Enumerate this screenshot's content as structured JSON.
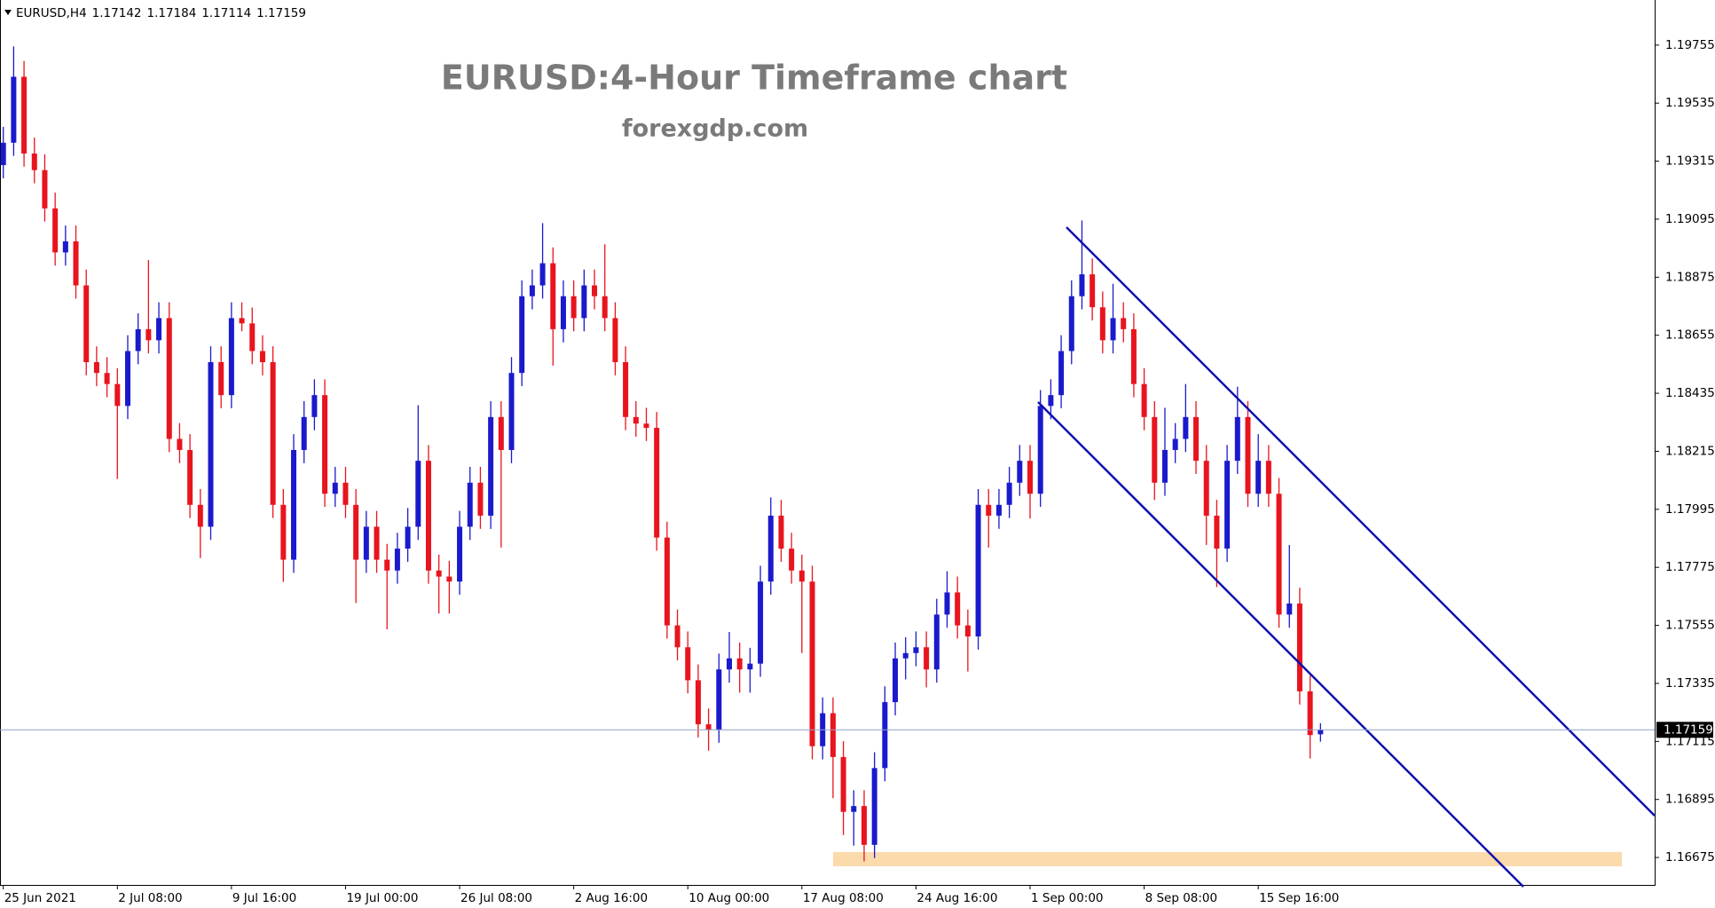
{
  "chart_data": {
    "type": "candlestick",
    "symbol": "EURUSD,H4",
    "quote": {
      "open": 1.17142,
      "high": 1.17184,
      "low": 1.17114,
      "close": 1.17159
    },
    "title": "EURUSD:4-Hour Timeframe chart",
    "subtitle": "forexgdp.com",
    "up_color": "#1a1acc",
    "down_color": "#e8141e",
    "ylim": [
      1.16571,
      1.19926
    ],
    "yticks": [
      1.16675,
      1.16895,
      1.17115,
      1.17335,
      1.17555,
      1.17775,
      1.17995,
      1.18215,
      1.18435,
      1.18655,
      1.18875,
      1.19095,
      1.19315,
      1.19535,
      1.19755
    ],
    "last_price": 1.17159,
    "categories": [
      "25 Jun 2021",
      null,
      null,
      null,
      null,
      null,
      null,
      null,
      null,
      null,
      null,
      "2 Jul 08:00",
      null,
      null,
      null,
      null,
      null,
      null,
      null,
      null,
      null,
      null,
      "9 Jul 16:00",
      null,
      null,
      null,
      null,
      null,
      null,
      null,
      null,
      null,
      null,
      "19 Jul 00:00",
      null,
      null,
      null,
      null,
      null,
      null,
      null,
      null,
      null,
      null,
      "26 Jul 08:00",
      null,
      null,
      null,
      null,
      null,
      null,
      null,
      null,
      null,
      null,
      "2 Aug 16:00",
      null,
      null,
      null,
      null,
      null,
      null,
      null,
      null,
      null,
      null,
      "10 Aug 00:00",
      null,
      null,
      null,
      null,
      null,
      null,
      null,
      null,
      null,
      null,
      "17 Aug 08:00",
      null,
      null,
      null,
      null,
      null,
      null,
      null,
      null,
      null,
      null,
      "24 Aug 16:00",
      null,
      null,
      null,
      null,
      null,
      null,
      null,
      null,
      null,
      null,
      "1 Sep 00:00",
      null,
      null,
      null,
      null,
      null,
      null,
      null,
      null,
      null,
      null,
      "8 Sep 08:00",
      null,
      null,
      null,
      null,
      null,
      null,
      null,
      null,
      null,
      null,
      "15 Sep 16:00",
      null,
      null,
      null,
      null,
      null,
      null
    ],
    "open": [
      1.193,
      1.19385,
      1.19635,
      1.19344,
      1.19281,
      1.19136,
      1.18969,
      1.19011,
      1.18844,
      1.18553,
      1.18512,
      1.1847,
      1.18387,
      1.18595,
      1.18678,
      1.18636,
      1.1872,
      1.18262,
      1.1822,
      1.18012,
      1.17929,
      1.18553,
      1.18428,
      1.1872,
      1.187,
      1.18595,
      1.18553,
      1.18012,
      1.17804,
      1.1822,
      1.18345,
      1.18428,
      1.18054,
      1.18096,
      1.18012,
      1.17804,
      1.17929,
      1.17804,
      1.17763,
      1.17846,
      1.17929,
      1.18179,
      1.17763,
      1.1774,
      1.17721,
      1.17929,
      1.18096,
      1.17971,
      1.18345,
      1.1822,
      1.18512,
      1.18803,
      1.18844,
      1.18928,
      1.18678,
      1.18803,
      1.1872,
      1.18844,
      1.18803,
      1.1872,
      1.18553,
      1.18345,
      1.1832,
      1.18304,
      1.17888,
      1.17555,
      1.17472,
      1.17347,
      1.1718,
      1.1716,
      1.17388,
      1.1743,
      1.17388,
      1.1741,
      1.17721,
      1.17971,
      1.17846,
      1.17763,
      1.17721,
      1.17097,
      1.17222,
      1.17056,
      1.16848,
      1.1687,
      1.16723,
      1.17014,
      1.17264,
      1.1743,
      1.1745,
      1.17472,
      1.17388,
      1.17596,
      1.1768,
      1.17555,
      1.17513,
      1.18012,
      1.17971,
      1.18012,
      1.18096,
      1.18179,
      1.18054,
      1.18387,
      1.18428,
      1.18595,
      1.18803,
      1.18886,
      1.18761,
      1.18636,
      1.1872,
      1.18678,
      1.1847,
      1.18345,
      1.18096,
      1.1822,
      1.18262,
      1.18345,
      1.18179,
      1.17971,
      1.17846,
      1.18179,
      1.18345,
      1.18054,
      1.18179,
      1.18054,
      1.17596,
      1.17638,
      1.17305,
      1.17142
    ],
    "high": [
      1.19445,
      1.1975,
      1.19695,
      1.19404,
      1.19341,
      1.19196,
      1.19071,
      1.19071,
      1.18904,
      1.18613,
      1.18572,
      1.1853,
      1.18655,
      1.18738,
      1.1894,
      1.1878,
      1.1878,
      1.18322,
      1.1828,
      1.18072,
      1.18613,
      1.18613,
      1.1878,
      1.1878,
      1.1876,
      1.18655,
      1.18613,
      1.18072,
      1.1828,
      1.18405,
      1.18488,
      1.18488,
      1.18156,
      1.18156,
      1.18072,
      1.17989,
      1.17989,
      1.17864,
      1.17906,
      1.18,
      1.1839,
      1.18239,
      1.17823,
      1.178,
      1.17989,
      1.18156,
      1.18156,
      1.18405,
      1.18405,
      1.18572,
      1.18863,
      1.18904,
      1.1908,
      1.18988,
      1.18863,
      1.18863,
      1.18904,
      1.18904,
      1.19,
      1.1878,
      1.18613,
      1.18405,
      1.1838,
      1.18364,
      1.17948,
      1.17615,
      1.17532,
      1.17407,
      1.1724,
      1.17448,
      1.1753,
      1.1749,
      1.1747,
      1.17781,
      1.1804,
      1.18031,
      1.17906,
      1.17823,
      1.17781,
      1.17282,
      1.17282,
      1.17116,
      1.1693,
      1.1693,
      1.17074,
      1.17324,
      1.1749,
      1.1751,
      1.17532,
      1.17532,
      1.17656,
      1.1776,
      1.1774,
      1.17615,
      1.18072,
      1.18072,
      1.18072,
      1.18156,
      1.18239,
      1.18239,
      1.18447,
      1.18488,
      1.18655,
      1.18863,
      1.1909,
      1.18946,
      1.18821,
      1.1885,
      1.1878,
      1.18738,
      1.1853,
      1.18405,
      1.1838,
      1.18322,
      1.1847,
      1.18405,
      1.18239,
      1.18031,
      1.18239,
      1.1846,
      1.18405,
      1.1828,
      1.18239,
      1.18114,
      1.1786,
      1.17698,
      1.17365,
      1.17184
    ],
    "low": [
      1.1925,
      1.19335,
      1.19294,
      1.19231,
      1.19086,
      1.18919,
      1.18919,
      1.18794,
      1.18503,
      1.18462,
      1.1842,
      1.1811,
      1.18337,
      1.18545,
      1.18586,
      1.18586,
      1.18212,
      1.1817,
      1.17962,
      1.1781,
      1.17879,
      1.18378,
      1.18378,
      1.1867,
      1.18545,
      1.18503,
      1.17962,
      1.1772,
      1.17754,
      1.1817,
      1.18295,
      1.18004,
      1.18004,
      1.17962,
      1.1764,
      1.17754,
      1.17754,
      1.1754,
      1.17713,
      1.17796,
      1.17879,
      1.17713,
      1.176,
      1.176,
      1.17671,
      1.17879,
      1.17921,
      1.17921,
      1.1785,
      1.1817,
      1.18462,
      1.18753,
      1.18794,
      1.1854,
      1.18628,
      1.1867,
      1.1867,
      1.18753,
      1.1867,
      1.18503,
      1.18295,
      1.1827,
      1.18254,
      1.17838,
      1.17505,
      1.17422,
      1.17297,
      1.1713,
      1.1708,
      1.1711,
      1.17338,
      1.173,
      1.173,
      1.1736,
      1.17671,
      1.17796,
      1.17713,
      1.1745,
      1.17047,
      1.17047,
      1.169,
      1.1676,
      1.1672,
      1.1666,
      1.16673,
      1.16964,
      1.17214,
      1.1735,
      1.174,
      1.1732,
      1.17338,
      1.17546,
      1.17505,
      1.1738,
      1.17463,
      1.1785,
      1.17921,
      1.17962,
      1.18046,
      1.1796,
      1.18004,
      1.18337,
      1.18378,
      1.18545,
      1.18753,
      1.18711,
      1.18586,
      1.18586,
      1.18628,
      1.1842,
      1.18295,
      1.1803,
      1.18046,
      1.1817,
      1.18212,
      1.18129,
      1.1786,
      1.177,
      1.17796,
      1.18129,
      1.18004,
      1.18004,
      1.18004,
      1.17546,
      1.17546,
      1.17255,
      1.1705,
      1.17114
    ],
    "close": [
      1.19385,
      1.19635,
      1.19344,
      1.19281,
      1.19136,
      1.18969,
      1.19011,
      1.18844,
      1.18553,
      1.18512,
      1.1847,
      1.18387,
      1.18595,
      1.18678,
      1.18636,
      1.1872,
      1.18262,
      1.1822,
      1.18012,
      1.17929,
      1.18553,
      1.18428,
      1.1872,
      1.187,
      1.18595,
      1.18553,
      1.18012,
      1.17804,
      1.1822,
      1.18345,
      1.18428,
      1.18054,
      1.18096,
      1.18012,
      1.17804,
      1.17929,
      1.17804,
      1.17763,
      1.17846,
      1.17929,
      1.18179,
      1.17763,
      1.1774,
      1.17721,
      1.17929,
      1.18096,
      1.17971,
      1.18345,
      1.1822,
      1.18512,
      1.18803,
      1.18844,
      1.18928,
      1.18678,
      1.18803,
      1.1872,
      1.18844,
      1.18803,
      1.1872,
      1.18553,
      1.18345,
      1.1832,
      1.18304,
      1.17888,
      1.17555,
      1.17472,
      1.17347,
      1.1718,
      1.1716,
      1.17388,
      1.1743,
      1.17388,
      1.1741,
      1.17721,
      1.17971,
      1.17846,
      1.17763,
      1.17721,
      1.17097,
      1.17222,
      1.17056,
      1.16848,
      1.1687,
      1.16723,
      1.17014,
      1.17264,
      1.1743,
      1.1745,
      1.17472,
      1.17388,
      1.17596,
      1.1768,
      1.17555,
      1.17513,
      1.18012,
      1.17971,
      1.18012,
      1.18096,
      1.18179,
      1.18054,
      1.18387,
      1.18428,
      1.18595,
      1.18803,
      1.18886,
      1.18761,
      1.18636,
      1.1872,
      1.18678,
      1.1847,
      1.18345,
      1.18096,
      1.1822,
      1.18262,
      1.18345,
      1.18179,
      1.17971,
      1.17846,
      1.18179,
      1.18345,
      1.18054,
      1.18179,
      1.18054,
      1.17596,
      1.17638,
      1.17305,
      1.17139,
      1.17159
    ]
  }
}
